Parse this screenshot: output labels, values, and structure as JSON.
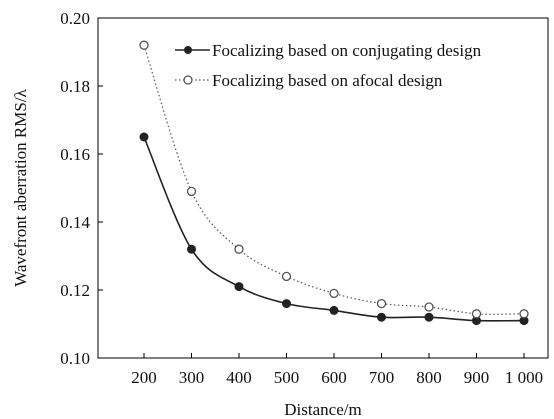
{
  "chart_data": {
    "type": "line",
    "title": "",
    "xlabel": "Distance/m",
    "ylabel": "Wavefront aberration RMS/λ",
    "x": [
      200,
      300,
      400,
      500,
      600,
      700,
      800,
      900,
      1000
    ],
    "x_tick_labels": [
      "200",
      "300",
      "400",
      "500",
      "600",
      "700",
      "800",
      "900",
      "1 000"
    ],
    "ylim": [
      0.1,
      0.2
    ],
    "y_ticks": [
      0.1,
      0.12,
      0.14,
      0.16,
      0.18,
      0.2
    ],
    "y_tick_labels": [
      "0.10",
      "0.12",
      "0.14",
      "0.16",
      "0.18",
      "0.20"
    ],
    "grid": false,
    "legend_position": "top-right",
    "series": [
      {
        "name": "Focalizing based on conjugating design",
        "values": [
          0.165,
          0.132,
          0.121,
          0.116,
          0.114,
          0.112,
          0.112,
          0.111,
          0.111
        ],
        "marker": "filled-circle",
        "line_style": "solid",
        "color": "#222222"
      },
      {
        "name": "Focalizing based on afocal design",
        "values": [
          0.192,
          0.149,
          0.132,
          0.124,
          0.119,
          0.116,
          0.115,
          0.113,
          0.113
        ],
        "marker": "open-circle",
        "line_style": "dotted",
        "color": "#555555"
      }
    ]
  }
}
